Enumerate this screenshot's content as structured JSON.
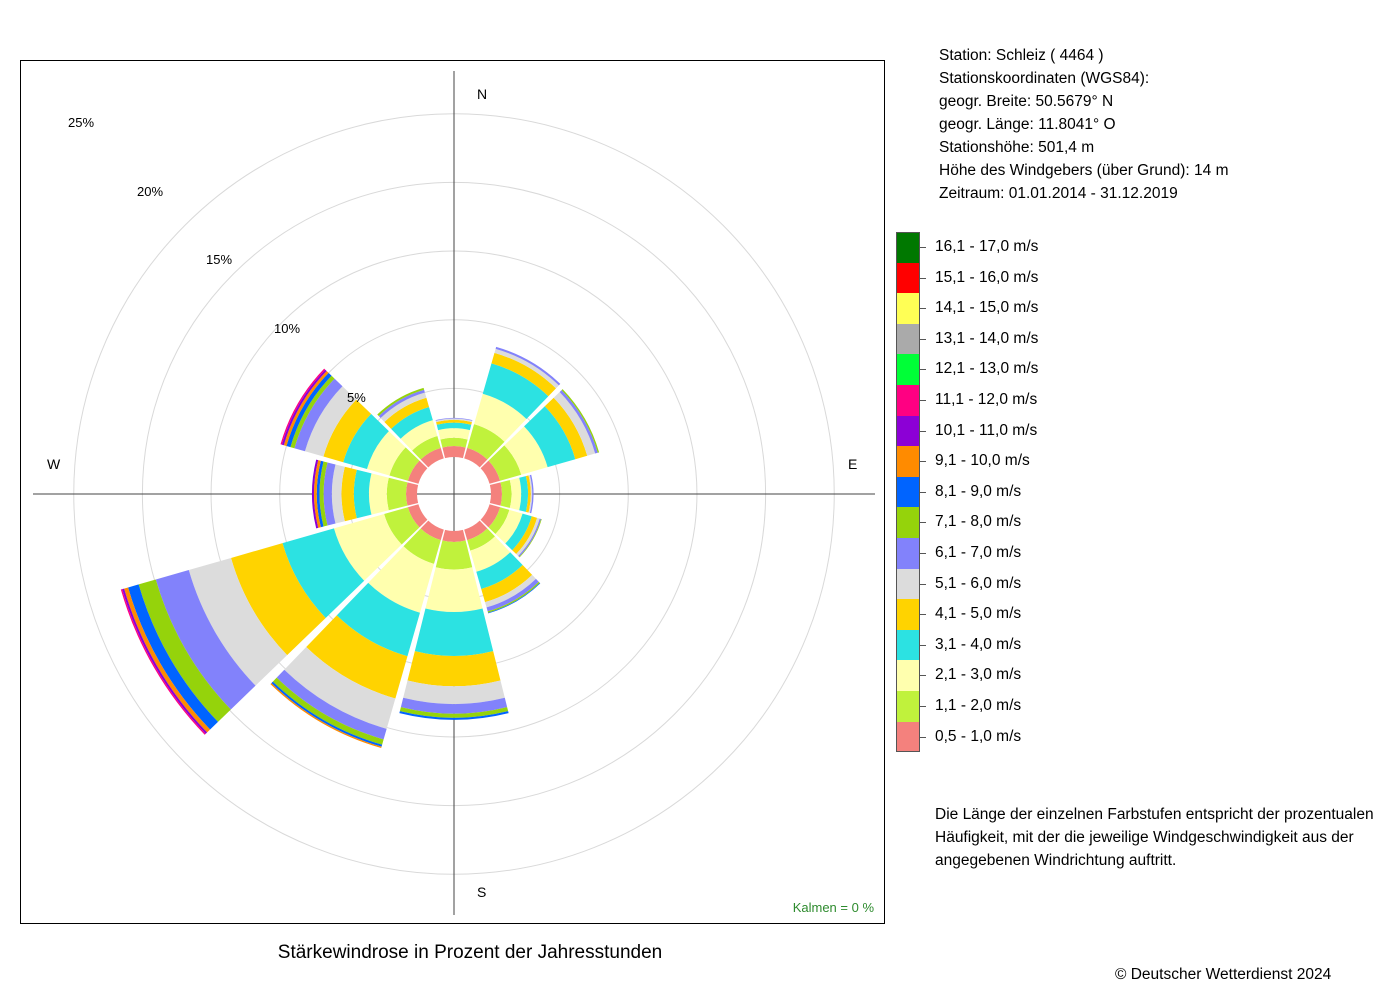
{
  "station": {
    "line1": "Station:  Schleiz  ( 4464 )",
    "line2": "Stationskoordinaten (WGS84):",
    "line3": "geogr. Breite: 50.5679° N",
    "line4": "geogr. Länge: 11.8041° O",
    "line5": "Stationshöhe: 501,4 m",
    "line6": "Höhe des Windgebers (über Grund): 14 m",
    "line7": "Zeitraum: 01.01.2014 - 31.12.2019"
  },
  "title": "Stärkewindrose in Prozent der Jahresstunden",
  "calm": "Kalmen  =  0 %",
  "note": "Die Länge der einzelnen Farbstufen entspricht der prozentualen Häufigkeit, mit der die jeweilige Windgeschwindigkeit aus der angegebenen Windrichtung auftritt.",
  "copyright": "© Deutscher Wetterdienst  2024",
  "compass": {
    "n": "N",
    "e": "E",
    "s": "S",
    "w": "W"
  },
  "chart_data": {
    "type": "wind-rose",
    "title": "Stärkewindrose in Prozent der Jahresstunden",
    "calm_percent": 0,
    "ring_labels": [
      "5%",
      "10%",
      "15%",
      "20%",
      "25%"
    ],
    "rings": [
      5,
      10,
      15,
      20,
      25
    ],
    "directions_deg": [
      0,
      30,
      60,
      90,
      120,
      150,
      180,
      210,
      240,
      270,
      300,
      330
    ],
    "speed_classes": [
      {
        "label": "0,5 - 1,0 m/s",
        "color": "#f4817d"
      },
      {
        "label": "1,1 - 2,0 m/s",
        "color": "#c0f23c"
      },
      {
        "label": "2,1 - 3,0 m/s",
        "color": "#ffffae"
      },
      {
        "label": "3,1 - 4,0 m/s",
        "color": "#2ce2e2"
      },
      {
        "label": "4,1 - 5,0 m/s",
        "color": "#ffd300"
      },
      {
        "label": "5,1 - 6,0 m/s",
        "color": "#dcdcdc"
      },
      {
        "label": "6,1 - 7,0 m/s",
        "color": "#8282fb"
      },
      {
        "label": "7,1 - 8,0 m/s",
        "color": "#95d30b"
      },
      {
        "label": "8,1 - 9,0 m/s",
        "color": "#0064ff"
      },
      {
        "label": "9,1 - 10,0 m/s",
        "color": "#ff8b00"
      },
      {
        "label": "10,1 - 11,0 m/s",
        "color": "#8c00d6"
      },
      {
        "label": "11,1 - 12,0 m/s",
        "color": "#ff0082"
      },
      {
        "label": "12,1 - 13,0 m/s",
        "color": "#00ff37"
      },
      {
        "label": "13,1 - 14,0 m/s",
        "color": "#aaaaaa"
      },
      {
        "label": "14,1 - 15,0 m/s",
        "color": "#ffff55"
      },
      {
        "label": "15,1 - 16,0 m/s",
        "color": "#ff0000"
      },
      {
        "label": "16,1 - 17,0 m/s",
        "color": "#007800"
      }
    ],
    "sectors": [
      {
        "dir": 0,
        "values": [
          0.8,
          0.6,
          0.7,
          0.4,
          0.2,
          0.1,
          0.05
        ]
      },
      {
        "dir": 30,
        "values": [
          0.8,
          1.8,
          2.3,
          2.3,
          0.8,
          0.3,
          0.15
        ]
      },
      {
        "dir": 60,
        "values": [
          0.8,
          1.6,
          2.0,
          2.1,
          0.9,
          0.6,
          0.2,
          0.1
        ]
      },
      {
        "dir": 90,
        "values": [
          0.8,
          0.7,
          0.7,
          0.5,
          0.2,
          0.1,
          0.1
        ]
      },
      {
        "dir": 120,
        "values": [
          0.8,
          0.7,
          1.0,
          0.7,
          0.4,
          0.2,
          0.1,
          0.05
        ]
      },
      {
        "dir": 150,
        "values": [
          0.8,
          0.8,
          1.6,
          1.3,
          1.0,
          0.4,
          0.3,
          0.1,
          0.05
        ]
      },
      {
        "dir": 180,
        "values": [
          0.8,
          2.0,
          3.1,
          3.2,
          2.2,
          1.3,
          0.7,
          0.3,
          0.15
        ]
      },
      {
        "dir": 210,
        "values": [
          0.8,
          1.8,
          3.7,
          3.3,
          3.2,
          2.3,
          0.8,
          0.4,
          0.15,
          0.1
        ]
      },
      {
        "dir": 240,
        "values": [
          0.8,
          1.8,
          3.8,
          3.9,
          3.9,
          3.2,
          2.5,
          1.3,
          0.8,
          0.3,
          0.15,
          0.1
        ]
      },
      {
        "dir": 270,
        "values": [
          0.8,
          1.4,
          1.3,
          1.1,
          0.9,
          0.7,
          0.6,
          0.3,
          0.2,
          0.2,
          0.15
        ]
      },
      {
        "dir": 300,
        "values": [
          0.8,
          1.4,
          1.7,
          1.8,
          1.5,
          1.4,
          0.8,
          0.3,
          0.3,
          0.2,
          0.15,
          0.1
        ]
      },
      {
        "dir": 330,
        "values": [
          0.8,
          0.9,
          1.2,
          1.0,
          0.7,
          0.4,
          0.2,
          0.15
        ]
      }
    ],
    "grid": true
  }
}
